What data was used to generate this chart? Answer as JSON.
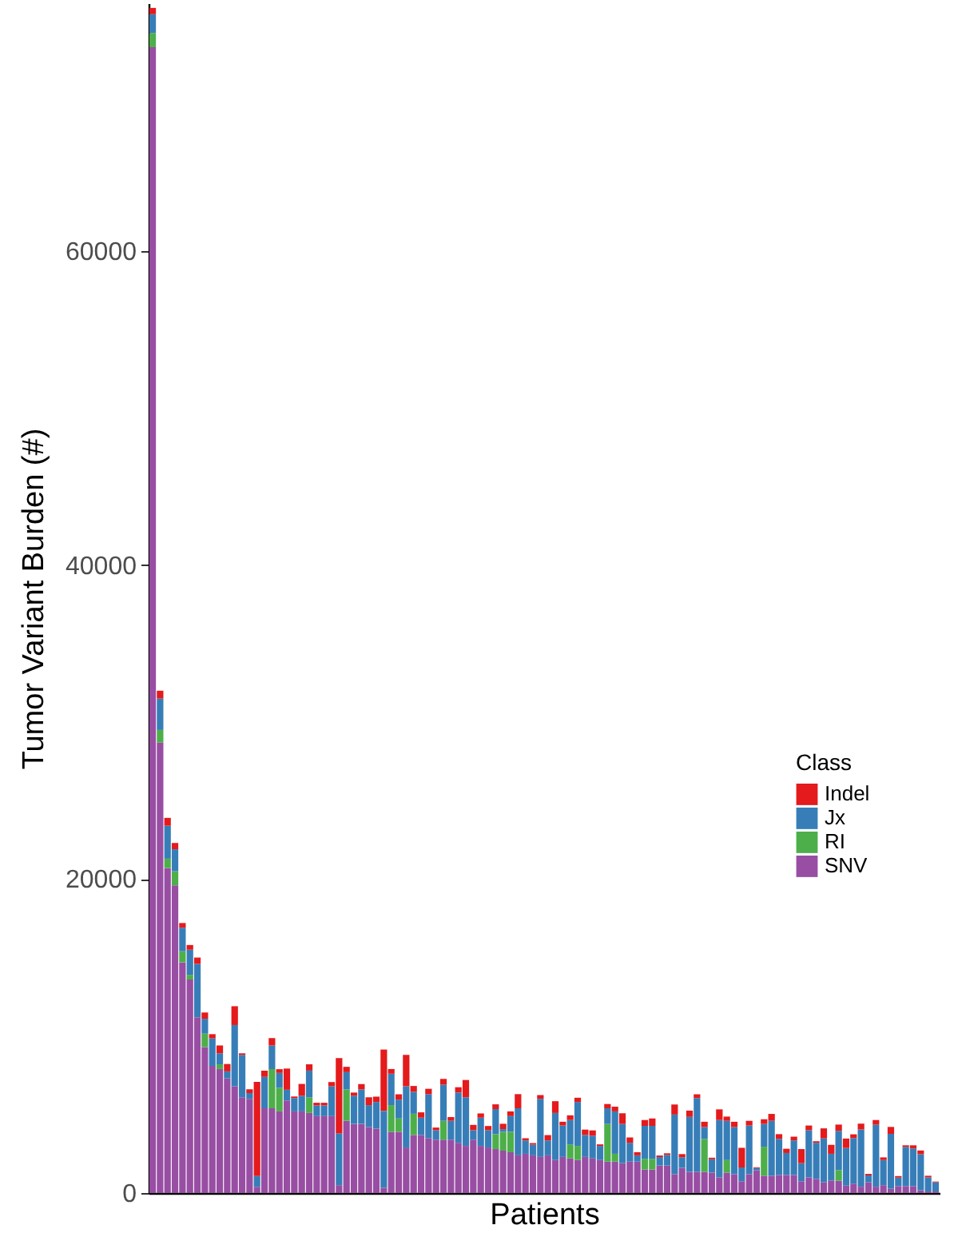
{
  "chart_data": {
    "type": "bar",
    "stacked": true,
    "xlabel": "Patients",
    "ylabel": "Tumor Variant Burden (#)",
    "legend_title": "Class",
    "legend": "right",
    "grid": false,
    "tick_labels": "y",
    "ylim": [
      0,
      75800
    ],
    "yticks": [
      0,
      20000,
      40000,
      60000
    ],
    "categories": [
      null,
      null,
      null,
      null,
      null,
      null,
      null,
      null,
      null,
      null,
      null,
      null,
      null,
      null,
      null,
      null,
      null,
      null,
      null,
      null,
      null,
      null,
      null,
      null,
      null,
      null,
      null,
      null,
      null,
      null,
      null,
      null,
      null,
      null,
      null,
      null,
      null,
      null,
      null,
      null,
      null,
      null,
      null,
      null,
      null,
      null,
      null,
      null,
      null,
      null,
      null,
      null,
      null,
      null,
      null,
      null,
      null,
      null,
      null,
      null,
      null,
      null,
      null,
      null,
      null,
      null,
      null,
      null,
      null,
      null,
      null,
      null,
      null,
      null,
      null,
      null,
      null,
      null,
      null,
      null,
      null,
      null,
      null,
      null,
      null,
      null,
      null,
      null,
      null,
      null,
      null,
      null,
      null,
      null,
      null,
      null,
      null,
      null,
      null,
      null,
      null,
      null,
      null,
      null,
      null,
      null
    ],
    "series": [
      {
        "name": "SNV",
        "color": "#984ea3",
        "values": [
          73000,
          28700,
          20700,
          19600,
          14700,
          13600,
          11200,
          9300,
          8100,
          7900,
          7300,
          6800,
          6100,
          6000,
          400,
          5400,
          5400,
          5200,
          5900,
          5200,
          5200,
          5100,
          4900,
          4900,
          4900,
          500,
          4600,
          4400,
          4400,
          4200,
          4100,
          340,
          3900,
          3900,
          2900,
          3700,
          3700,
          3500,
          3400,
          3400,
          3400,
          3200,
          3000,
          3400,
          3000,
          2900,
          2800,
          2700,
          2600,
          2400,
          2500,
          2400,
          2300,
          2400,
          2100,
          2300,
          2200,
          2100,
          2300,
          2200,
          2100,
          2000,
          2000,
          1900,
          2000,
          2000,
          1500,
          1500,
          1750,
          1750,
          1200,
          1600,
          1350,
          1350,
          1350,
          1300,
          1000,
          1300,
          1200,
          750,
          1200,
          1450,
          1100,
          1100,
          1150,
          1150,
          1150,
          750,
          1000,
          900,
          680,
          800,
          780,
          470,
          600,
          400,
          680,
          400,
          500,
          270,
          440,
          440,
          440,
          170,
          100,
          100
        ]
      },
      {
        "name": "RI",
        "color": "#4daf4a",
        "values": [
          900,
          800,
          600,
          900,
          700,
          300,
          0,
          850,
          0,
          300,
          0,
          0,
          0,
          0,
          0,
          0,
          2500,
          1500,
          0,
          0,
          0,
          1000,
          0,
          0,
          0,
          0,
          2000,
          0,
          0,
          0,
          0,
          0,
          1700,
          850,
          0,
          1350,
          0,
          0,
          0,
          1200,
          0,
          0,
          0,
          0,
          0,
          0,
          950,
          1200,
          1300,
          0,
          0,
          0,
          0,
          0,
          0,
          0,
          900,
          900,
          0,
          0,
          0,
          2400,
          500,
          0,
          0,
          0,
          680,
          680,
          0,
          0,
          0,
          0,
          0,
          0,
          2100,
          0,
          0,
          800,
          0,
          0,
          0,
          0,
          1850,
          0,
          0,
          0,
          0,
          0,
          0,
          0,
          0,
          0,
          680,
          0,
          0,
          0,
          0,
          0,
          0,
          0,
          0,
          0,
          0,
          0,
          0,
          0
        ]
      },
      {
        "name": "Jx",
        "color": "#377eb8",
        "values": [
          1200,
          2000,
          2100,
          1400,
          1500,
          1600,
          3400,
          950,
          1750,
          700,
          450,
          3900,
          2700,
          370,
          680,
          2000,
          1500,
          950,
          680,
          850,
          1000,
          1700,
          680,
          680,
          1900,
          3300,
          1100,
          1800,
          2200,
          1400,
          1700,
          4900,
          2000,
          1200,
          3900,
          1400,
          1100,
          2800,
          600,
          2300,
          1200,
          3200,
          3100,
          600,
          1800,
          1100,
          1600,
          170,
          1000,
          3000,
          850,
          680,
          3700,
          950,
          3000,
          2000,
          1550,
          2800,
          1400,
          1450,
          900,
          1000,
          2700,
          2500,
          1200,
          400,
          2100,
          2100,
          540,
          680,
          3800,
          680,
          3500,
          4700,
          750,
          850,
          3650,
          2500,
          3000,
          880,
          3100,
          140,
          1450,
          3500,
          2300,
          1400,
          2200,
          1150,
          3000,
          2300,
          2800,
          1700,
          2500,
          2400,
          2900,
          3650,
          440,
          3950,
          1600,
          3500,
          540,
          2500,
          2400,
          2300,
          900,
          580
        ]
      },
      {
        "name": "Indel",
        "color": "#e41a1c",
        "values": [
          400,
          500,
          500,
          400,
          300,
          300,
          400,
          400,
          270,
          500,
          470,
          1200,
          100,
          240,
          6000,
          400,
          470,
          240,
          1350,
          100,
          750,
          400,
          170,
          170,
          270,
          4800,
          340,
          200,
          340,
          500,
          340,
          3900,
          300,
          340,
          2000,
          370,
          340,
          340,
          170,
          370,
          240,
          340,
          1100,
          340,
          270,
          270,
          300,
          340,
          300,
          900,
          140,
          100,
          240,
          340,
          750,
          240,
          300,
          270,
          340,
          340,
          100,
          270,
          300,
          680,
          340,
          200,
          370,
          470,
          100,
          100,
          640,
          200,
          400,
          240,
          340,
          100,
          680,
          270,
          340,
          1250,
          300,
          50,
          300,
          440,
          300,
          270,
          240,
          900,
          300,
          100,
          640,
          570,
          400,
          600,
          240,
          370,
          100,
          300,
          170,
          440,
          100,
          100,
          200,
          240,
          100,
          50
        ]
      }
    ]
  }
}
